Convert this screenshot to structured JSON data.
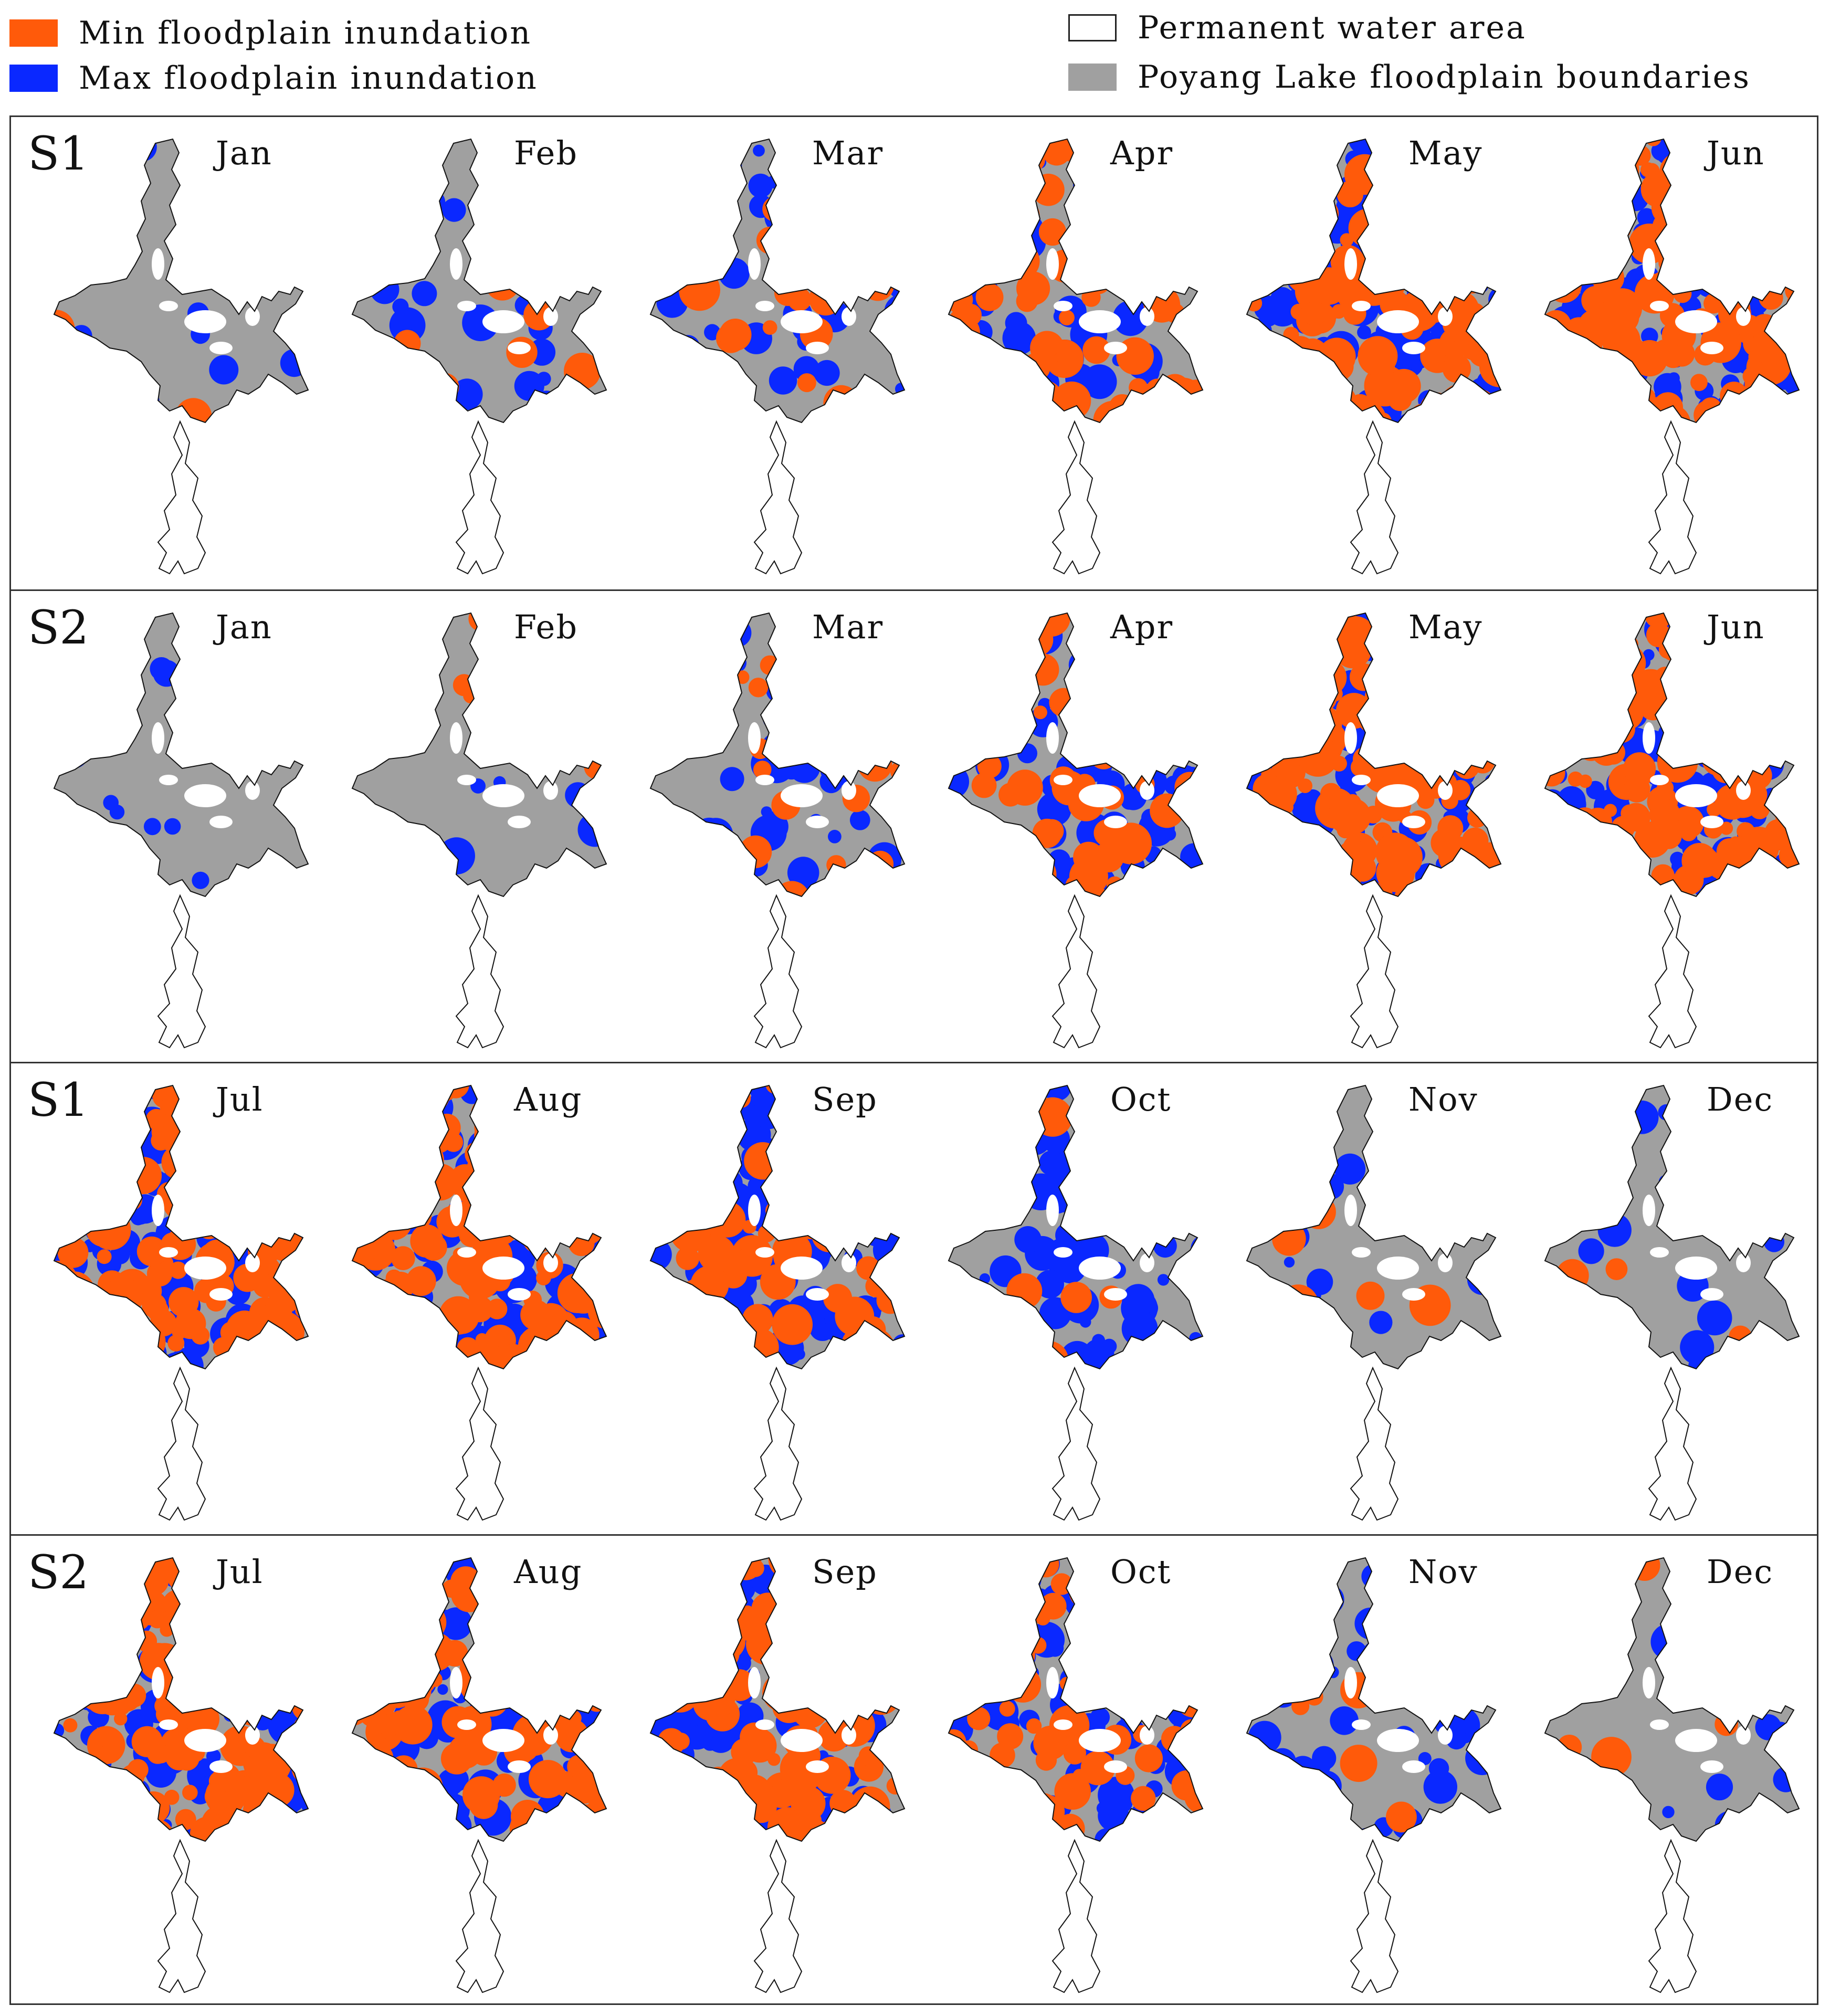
{
  "legend": {
    "items": [
      {
        "label": "Min floodplain inundation",
        "color": "#ff5a0a"
      },
      {
        "label": "Max floodplain inundation",
        "color": "#0a28ff"
      },
      {
        "label": "Permanent water area",
        "color": "#ffffff"
      },
      {
        "label": "Poyang Lake floodplain boundaries",
        "color": "#a0a0a0"
      }
    ]
  },
  "rows": [
    {
      "scenario": "S1",
      "panels": [
        {
          "month": "Jan",
          "min": 0.02,
          "max": 0.12
        },
        {
          "month": "Feb",
          "min": 0.05,
          "max": 0.22
        },
        {
          "month": "Mar",
          "min": 0.12,
          "max": 0.35
        },
        {
          "month": "Apr",
          "min": 0.45,
          "max": 0.6
        },
        {
          "month": "May",
          "min": 0.88,
          "max": 0.94
        },
        {
          "month": "Jun",
          "min": 0.9,
          "max": 0.96
        }
      ]
    },
    {
      "scenario": "S2",
      "panels": [
        {
          "month": "Jan",
          "min": 0.0,
          "max": 0.1
        },
        {
          "month": "Feb",
          "min": 0.04,
          "max": 0.12
        },
        {
          "month": "Mar",
          "min": 0.12,
          "max": 0.32
        },
        {
          "month": "Apr",
          "min": 0.5,
          "max": 0.62
        },
        {
          "month": "May",
          "min": 0.86,
          "max": 0.93
        },
        {
          "month": "Jun",
          "min": 0.93,
          "max": 0.96
        }
      ]
    },
    {
      "scenario": "S1",
      "panels": [
        {
          "month": "Jul",
          "min": 0.98,
          "max": 0.99
        },
        {
          "month": "Aug",
          "min": 0.92,
          "max": 0.97
        },
        {
          "month": "Sep",
          "min": 0.75,
          "max": 0.92
        },
        {
          "month": "Oct",
          "min": 0.1,
          "max": 0.6
        },
        {
          "month": "Nov",
          "min": 0.08,
          "max": 0.15
        },
        {
          "month": "Dec",
          "min": 0.05,
          "max": 0.12
        }
      ]
    },
    {
      "scenario": "S2",
      "panels": [
        {
          "month": "Jul",
          "min": 0.97,
          "max": 0.99
        },
        {
          "month": "Aug",
          "min": 0.96,
          "max": 0.98
        },
        {
          "month": "Sep",
          "min": 0.88,
          "max": 0.95
        },
        {
          "month": "Oct",
          "min": 0.6,
          "max": 0.85
        },
        {
          "month": "Nov",
          "min": 0.08,
          "max": 0.45
        },
        {
          "month": "Dec",
          "min": 0.05,
          "max": 0.15
        }
      ]
    }
  ]
}
